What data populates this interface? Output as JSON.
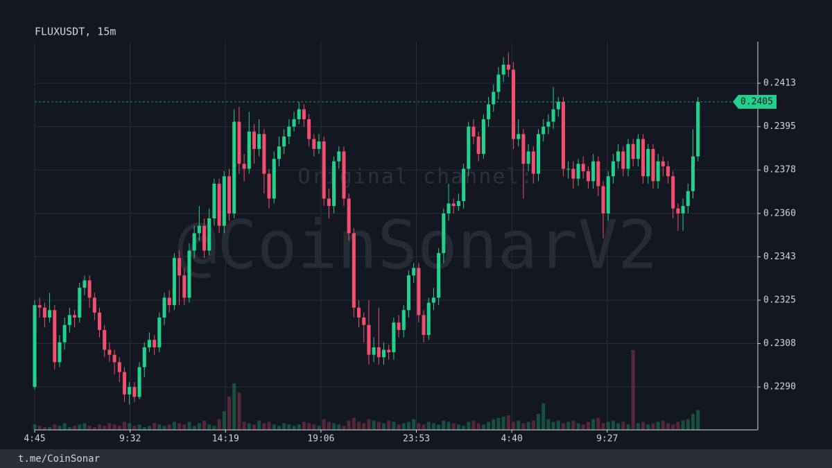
{
  "chart_data": {
    "type": "candlestick",
    "title": "FLUXUSDT, 15m",
    "watermark_top": "Original channel:",
    "watermark": "@CoinSonarV2",
    "footer": "t.me/CoinSonar",
    "up_color": "#22d18b",
    "down_color": "#f0506e",
    "grid": true,
    "last_price": 0.2405,
    "xlim": [
      0,
      145
    ],
    "xticks": [
      {
        "value": 0,
        "label": "4:45"
      },
      {
        "value": 19.133,
        "label": "9:32"
      },
      {
        "value": 38.267,
        "label": "14:19"
      },
      {
        "value": 57.4,
        "label": "19:06"
      },
      {
        "value": 76.533,
        "label": "23:53"
      },
      {
        "value": 95.667,
        "label": "4:40"
      },
      {
        "value": 114.8,
        "label": "9:27"
      }
    ],
    "ylim": [
      0.22727,
      0.24293
    ],
    "yticks": [
      {
        "value": 0.229,
        "label": "0.2290"
      },
      {
        "value": 0.23075,
        "label": "0.2308"
      },
      {
        "value": 0.2325,
        "label": "0.2325"
      },
      {
        "value": 0.23425,
        "label": "0.2343"
      },
      {
        "value": 0.236,
        "label": "0.2360"
      },
      {
        "value": 0.23775,
        "label": "0.2378"
      },
      {
        "value": 0.2395,
        "label": "0.2395"
      },
      {
        "value": 0.24125,
        "label": "0.2413"
      }
    ],
    "open": [
      0.229,
      0.2323,
      0.2322,
      0.2318,
      0.2321,
      0.23,
      0.2308,
      0.2315,
      0.2319,
      0.2318,
      0.233,
      0.2333,
      0.2326,
      0.232,
      0.2313,
      0.2305,
      0.2303,
      0.23,
      0.2296,
      0.2287,
      0.229,
      0.2286,
      0.2298,
      0.2306,
      0.2309,
      0.2306,
      0.2318,
      0.2326,
      0.2323,
      0.2342,
      0.2335,
      0.2326,
      0.2345,
      0.2352,
      0.2355,
      0.2345,
      0.2358,
      0.2372,
      0.2355,
      0.2375,
      0.236,
      0.2397,
      0.238,
      0.2378,
      0.2393,
      0.2386,
      0.2392,
      0.2376,
      0.2366,
      0.2382,
      0.2387,
      0.2391,
      0.2395,
      0.2398,
      0.2402,
      0.2398,
      0.239,
      0.2386,
      0.2389,
      0.2366,
      0.2363,
      0.2381,
      0.2385,
      0.2366,
      0.2352,
      0.2322,
      0.2318,
      0.2315,
      0.2303,
      0.2306,
      0.2302,
      0.2305,
      0.2304,
      0.2316,
      0.2313,
      0.2321,
      0.2335,
      0.2338,
      0.2319,
      0.2311,
      0.2324,
      0.2326,
      0.2344,
      0.236,
      0.2364,
      0.2363,
      0.2365,
      0.2378,
      0.2395,
      0.2391,
      0.2384,
      0.2398,
      0.2404,
      0.2409,
      0.2416,
      0.242,
      0.2418,
      0.239,
      0.2392,
      0.238,
      0.2385,
      0.2376,
      0.2392,
      0.2395,
      0.2397,
      0.2402,
      0.2405,
      0.2378,
      0.2378,
      0.2374,
      0.238,
      0.2377,
      0.2373,
      0.2381,
      0.2371,
      0.236,
      0.2375,
      0.2381,
      0.2385,
      0.2378,
      0.2388,
      0.2382,
      0.239,
      0.2375,
      0.2386,
      0.2373,
      0.2381,
      0.2379,
      0.2375,
      0.2362,
      0.236,
      0.2363,
      0.2369,
      0.2383
    ],
    "high": [
      0.2325,
      0.2326,
      0.2324,
      0.2328,
      0.2323,
      0.2311,
      0.2318,
      0.2322,
      0.2321,
      0.2332,
      0.2335,
      0.2335,
      0.2328,
      0.2322,
      0.2315,
      0.2308,
      0.2305,
      0.2302,
      0.2298,
      0.2292,
      0.2292,
      0.23,
      0.2308,
      0.2312,
      0.2311,
      0.232,
      0.2328,
      0.2329,
      0.2344,
      0.2345,
      0.2338,
      0.2348,
      0.2355,
      0.2363,
      0.2358,
      0.2362,
      0.2374,
      0.2374,
      0.2377,
      0.2378,
      0.2402,
      0.2403,
      0.2384,
      0.2401,
      0.2396,
      0.2398,
      0.2394,
      0.2378,
      0.2385,
      0.2391,
      0.2394,
      0.2398,
      0.2401,
      0.2405,
      0.2404,
      0.24,
      0.2392,
      0.2392,
      0.2391,
      0.237,
      0.2383,
      0.2387,
      0.2387,
      0.2368,
      0.2354,
      0.2325,
      0.232,
      0.2325,
      0.231,
      0.2322,
      0.2308,
      0.2307,
      0.2318,
      0.2319,
      0.2323,
      0.2337,
      0.234,
      0.234,
      0.2321,
      0.2326,
      0.233,
      0.2346,
      0.2362,
      0.2372,
      0.2366,
      0.2368,
      0.238,
      0.2397,
      0.2398,
      0.2393,
      0.24,
      0.2407,
      0.2412,
      0.2419,
      0.2423,
      0.2425,
      0.2421,
      0.2398,
      0.2394,
      0.2388,
      0.2387,
      0.2394,
      0.2398,
      0.24,
      0.2411,
      0.2407,
      0.2407,
      0.2381,
      0.2381,
      0.2382,
      0.2383,
      0.2379,
      0.2384,
      0.2383,
      0.2373,
      0.2377,
      0.2384,
      0.2388,
      0.2387,
      0.239,
      0.239,
      0.2392,
      0.2392,
      0.2388,
      0.2388,
      0.2384,
      0.2383,
      0.2381,
      0.2377,
      0.2364,
      0.2366,
      0.2372,
      0.2394,
      0.2407
    ],
    "low": [
      0.2289,
      0.2318,
      0.2314,
      0.2316,
      0.2297,
      0.2298,
      0.2305,
      0.2312,
      0.2314,
      0.2316,
      0.2327,
      0.2322,
      0.2317,
      0.231,
      0.2302,
      0.23,
      0.2295,
      0.2292,
      0.2284,
      0.2283,
      0.2284,
      0.2285,
      0.2294,
      0.2304,
      0.2303,
      0.2304,
      0.2315,
      0.232,
      0.2321,
      0.2323,
      0.2323,
      0.2324,
      0.2342,
      0.2349,
      0.2342,
      0.2343,
      0.2355,
      0.2352,
      0.2352,
      0.2357,
      0.2358,
      0.2376,
      0.2373,
      0.2376,
      0.238,
      0.2383,
      0.2368,
      0.2362,
      0.2364,
      0.2379,
      0.2384,
      0.2388,
      0.2393,
      0.2396,
      0.2395,
      0.2387,
      0.2383,
      0.2384,
      0.2363,
      0.2358,
      0.236,
      0.2378,
      0.2363,
      0.2349,
      0.2318,
      0.2314,
      0.2308,
      0.2299,
      0.23,
      0.2299,
      0.2299,
      0.2301,
      0.2301,
      0.231,
      0.231,
      0.2318,
      0.2332,
      0.2316,
      0.2308,
      0.2309,
      0.2321,
      0.2323,
      0.234,
      0.2357,
      0.236,
      0.2361,
      0.2362,
      0.2375,
      0.2388,
      0.2381,
      0.2382,
      0.2395,
      0.2401,
      0.2406,
      0.2413,
      0.2415,
      0.2386,
      0.2387,
      0.2366,
      0.2377,
      0.2372,
      0.2373,
      0.2389,
      0.2392,
      0.2394,
      0.2399,
      0.2375,
      0.2374,
      0.237,
      0.2371,
      0.2374,
      0.237,
      0.237,
      0.2367,
      0.235,
      0.2357,
      0.2372,
      0.2378,
      0.2375,
      0.2375,
      0.2379,
      0.2379,
      0.2372,
      0.2372,
      0.237,
      0.237,
      0.2375,
      0.2372,
      0.2358,
      0.2353,
      0.2353,
      0.236,
      0.2366,
      0.2381
    ],
    "close": [
      0.2323,
      0.2322,
      0.2318,
      0.2321,
      0.23,
      0.2308,
      0.2315,
      0.2319,
      0.2318,
      0.233,
      0.2333,
      0.2326,
      0.232,
      0.2313,
      0.2305,
      0.2303,
      0.23,
      0.2296,
      0.2287,
      0.229,
      0.2286,
      0.2298,
      0.2306,
      0.2309,
      0.2306,
      0.2318,
      0.2326,
      0.2323,
      0.2342,
      0.2335,
      0.2326,
      0.2345,
      0.2352,
      0.2355,
      0.2345,
      0.2358,
      0.2372,
      0.2355,
      0.2375,
      0.236,
      0.2397,
      0.238,
      0.2378,
      0.2393,
      0.2386,
      0.2392,
      0.2376,
      0.2366,
      0.2382,
      0.2387,
      0.2391,
      0.2395,
      0.2398,
      0.2402,
      0.2398,
      0.239,
      0.2386,
      0.2389,
      0.2366,
      0.2363,
      0.2381,
      0.2385,
      0.2366,
      0.2352,
      0.2322,
      0.2318,
      0.2315,
      0.2303,
      0.2306,
      0.2302,
      0.2305,
      0.2304,
      0.2316,
      0.2313,
      0.2321,
      0.2335,
      0.2338,
      0.2319,
      0.2311,
      0.2324,
      0.2326,
      0.2344,
      0.236,
      0.2364,
      0.2363,
      0.2365,
      0.2378,
      0.2395,
      0.2391,
      0.2384,
      0.2398,
      0.2404,
      0.2409,
      0.2416,
      0.242,
      0.2418,
      0.239,
      0.2392,
      0.238,
      0.2385,
      0.2376,
      0.2392,
      0.2395,
      0.2397,
      0.2402,
      0.2405,
      0.2378,
      0.2378,
      0.2374,
      0.238,
      0.2377,
      0.2373,
      0.2381,
      0.2371,
      0.236,
      0.2375,
      0.2381,
      0.2385,
      0.2378,
      0.2388,
      0.2382,
      0.239,
      0.2375,
      0.2386,
      0.2373,
      0.2381,
      0.2379,
      0.2375,
      0.2362,
      0.236,
      0.2363,
      0.2369,
      0.2383,
      0.2405
    ],
    "volume": [
      4,
      3,
      2,
      2,
      4,
      3,
      5,
      2,
      3,
      4,
      5,
      3,
      2,
      4,
      3,
      5,
      4,
      3,
      6,
      5,
      3,
      4,
      2,
      3,
      5,
      4,
      3,
      4,
      6,
      5,
      4,
      6,
      3,
      5,
      7,
      4,
      3,
      8,
      14,
      25,
      35,
      28,
      6,
      5,
      4,
      7,
      5,
      6,
      4,
      3,
      5,
      4,
      3,
      4,
      6,
      5,
      4,
      3,
      8,
      6,
      5,
      4,
      3,
      7,
      9,
      6,
      5,
      8,
      7,
      6,
      5,
      7,
      6,
      4,
      5,
      6,
      8,
      5,
      4,
      6,
      5,
      4,
      7,
      6,
      5,
      4,
      3,
      6,
      7,
      5,
      4,
      6,
      8,
      9,
      10,
      11,
      6,
      7,
      5,
      6,
      7,
      12,
      20,
      8,
      6,
      7,
      5,
      6,
      7,
      5,
      4,
      6,
      8,
      9,
      5,
      6,
      7,
      5,
      6,
      4,
      60,
      5,
      6,
      4,
      5,
      6,
      7,
      5,
      4,
      6,
      7,
      8,
      12,
      15
    ]
  }
}
